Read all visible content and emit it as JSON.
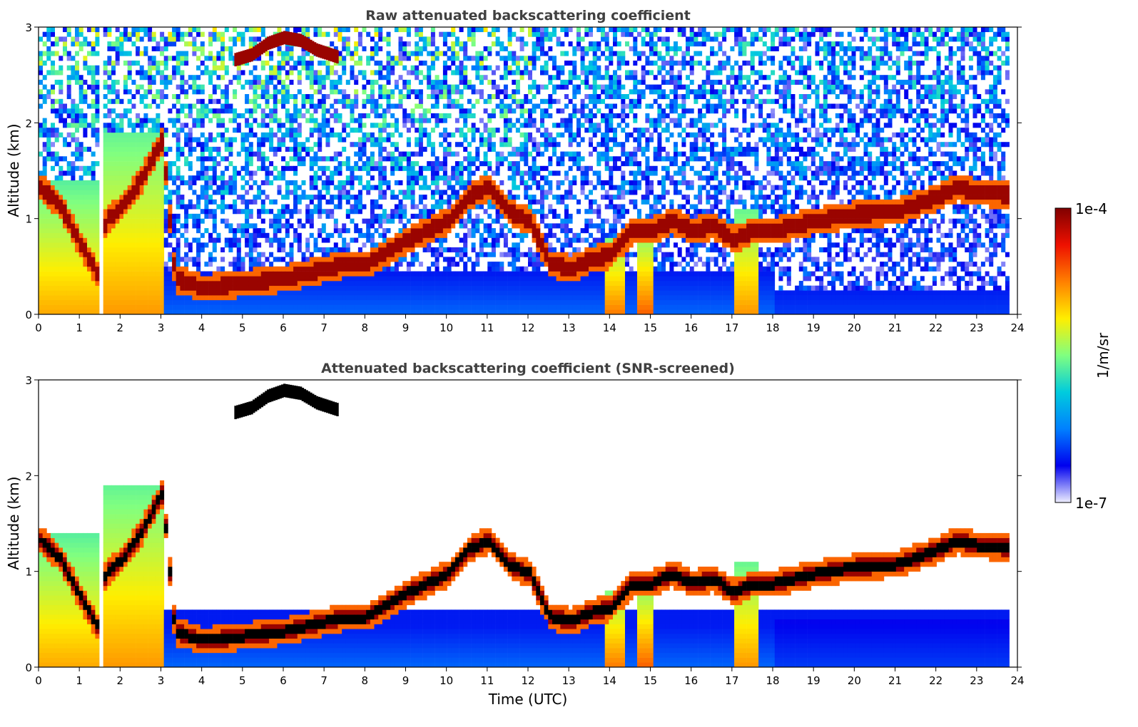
{
  "chart_data": [
    {
      "type": "heatmap",
      "title": "Raw attenuated backscattering coefficient",
      "xlabel": "",
      "ylabel": "Altitude (km)",
      "xlim": [
        0,
        24
      ],
      "ylim": [
        0,
        3
      ],
      "xticks": [
        0,
        1,
        2,
        3,
        4,
        5,
        6,
        7,
        8,
        9,
        10,
        11,
        12,
        13,
        14,
        15,
        16,
        17,
        18,
        19,
        20,
        21,
        22,
        23,
        24
      ],
      "yticks": [
        0,
        1,
        2,
        3
      ],
      "grid": false,
      "layers": [
        {
          "feature": "boundary-layer aerosol (dense)",
          "x": [
            0,
            1.45
          ],
          "y": [
            0,
            1.4
          ],
          "level": 0.7
        },
        {
          "feature": "boundary-layer aerosol (dense)",
          "x": [
            1.55,
            3.0
          ],
          "y": [
            0,
            1.9
          ],
          "level": 0.72
        },
        {
          "feature": "boundary-layer aerosol",
          "x": [
            3.0,
            18.0
          ],
          "y": [
            0,
            0.45
          ],
          "level": 0.22
        },
        {
          "feature": "boundary-layer aerosol",
          "x": [
            18.0,
            23.8
          ],
          "y": [
            0,
            0.5
          ],
          "level": 0.18
        },
        {
          "feature": "convective plume",
          "x": [
            13.8,
            14.3
          ],
          "y": [
            0,
            0.8
          ],
          "level": 0.75
        },
        {
          "feature": "convective plume",
          "x": [
            14.6,
            15.0
          ],
          "y": [
            0,
            0.8
          ],
          "level": 0.78
        },
        {
          "feature": "convective plume",
          "x": [
            17.0,
            17.6
          ],
          "y": [
            0,
            1.1
          ],
          "level": 0.72
        }
      ],
      "cloud_layer": {
        "t": [
          0,
          0.5,
          1.0,
          1.4,
          1.6,
          2.0,
          2.5,
          3.0,
          3.3,
          4.0,
          5.0,
          6.0,
          6.5,
          7.0,
          7.5,
          8.0,
          9.0,
          10.0,
          10.5,
          11.0,
          11.5,
          12.0,
          12.5,
          13.0,
          13.5,
          14.0,
          14.5,
          15.0,
          15.5,
          16.0,
          16.5,
          17.0,
          17.5,
          18.0,
          19.0,
          20.0,
          21.0,
          22.0,
          22.5,
          23.0,
          23.8
        ],
        "altitude_km": [
          1.3,
          1.1,
          0.7,
          0.4,
          0.95,
          1.1,
          1.4,
          1.8,
          0.35,
          0.25,
          0.3,
          0.35,
          0.4,
          0.45,
          0.5,
          0.5,
          0.75,
          0.95,
          1.2,
          1.3,
          1.05,
          0.95,
          0.5,
          0.45,
          0.55,
          0.6,
          0.85,
          0.85,
          0.95,
          0.85,
          0.9,
          0.75,
          0.85,
          0.85,
          0.95,
          1.02,
          1.05,
          1.2,
          1.3,
          1.25,
          1.22
        ]
      },
      "elevated_layer": {
        "t": [
          4.8,
          5.2,
          5.6,
          6.0,
          6.4,
          6.8,
          7.3
        ],
        "altitude_km": [
          2.65,
          2.7,
          2.82,
          2.88,
          2.85,
          2.75,
          2.68
        ]
      },
      "missing_data": [
        1.45,
        1.55
      ]
    },
    {
      "type": "heatmap",
      "title": "Attenuated backscattering coefficient (SNR-screened)",
      "xlabel": "Time (UTC)",
      "ylabel": "Altitude (km)",
      "xlim": [
        0,
        24
      ],
      "ylim": [
        0,
        3
      ],
      "xticks": [
        0,
        1,
        2,
        3,
        4,
        5,
        6,
        7,
        8,
        9,
        10,
        11,
        12,
        13,
        14,
        15,
        16,
        17,
        18,
        19,
        20,
        21,
        22,
        23,
        24
      ],
      "yticks": [
        0,
        1,
        2,
        3
      ],
      "grid": false,
      "screened": true
    }
  ],
  "colorbar": {
    "label": "1/m/sr",
    "max_label": "1e-4",
    "min_label": "1e-7",
    "scale": "log",
    "range": [
      1e-07,
      0.0001
    ],
    "colormap": [
      "#eeeeff",
      "#0000ee",
      "#0080ff",
      "#00ccdd",
      "#80ff80",
      "#ffee00",
      "#ff8000",
      "#ee1000",
      "#800000"
    ]
  }
}
